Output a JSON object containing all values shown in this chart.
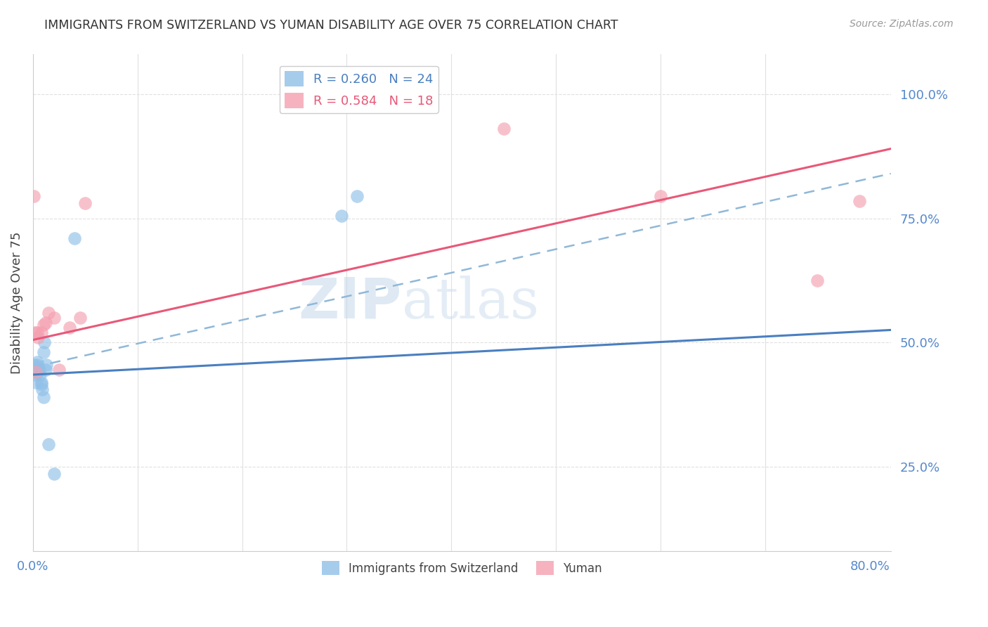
{
  "title": "IMMIGRANTS FROM SWITZERLAND VS YUMAN DISABILITY AGE OVER 75 CORRELATION CHART",
  "source": "Source: ZipAtlas.com",
  "ylabel": "Disability Age Over 75",
  "xlim": [
    0.0,
    0.82
  ],
  "ylim": [
    0.08,
    1.08
  ],
  "watermark_zip": "ZIP",
  "watermark_atlas": "atlas",
  "swiss_scatter_x": [
    0.001,
    0.002,
    0.002,
    0.003,
    0.003,
    0.004,
    0.004,
    0.005,
    0.005,
    0.006,
    0.007,
    0.008,
    0.008,
    0.009,
    0.01,
    0.01,
    0.011,
    0.012,
    0.013,
    0.015,
    0.02,
    0.04,
    0.295,
    0.31
  ],
  "swiss_scatter_y": [
    0.455,
    0.435,
    0.445,
    0.44,
    0.42,
    0.46,
    0.455,
    0.45,
    0.44,
    0.445,
    0.435,
    0.42,
    0.415,
    0.405,
    0.39,
    0.48,
    0.5,
    0.445,
    0.455,
    0.295,
    0.235,
    0.71,
    0.755,
    0.795
  ],
  "yuman_scatter_x": [
    0.001,
    0.002,
    0.003,
    0.004,
    0.005,
    0.008,
    0.01,
    0.012,
    0.015,
    0.02,
    0.025,
    0.035,
    0.045,
    0.05,
    0.45,
    0.6,
    0.75,
    0.79
  ],
  "yuman_scatter_y": [
    0.795,
    0.52,
    0.44,
    0.52,
    0.51,
    0.52,
    0.535,
    0.54,
    0.56,
    0.55,
    0.445,
    0.53,
    0.55,
    0.78,
    0.93,
    0.795,
    0.625,
    0.785
  ],
  "blue_color": "#90c0e8",
  "pink_color": "#f4a0b0",
  "blue_line_color": "#4a7fc0",
  "pink_line_color": "#e85878",
  "dashed_line_color": "#90b8d8",
  "grid_color": "#e0e0e0",
  "right_axis_color": "#5588cc",
  "title_color": "#333333",
  "source_color": "#999999",
  "blue_line_x0": 0.0,
  "blue_line_y0": 0.435,
  "blue_line_x1": 0.82,
  "blue_line_y1": 0.525,
  "pink_line_x0": 0.0,
  "pink_line_y0": 0.505,
  "pink_line_x1": 0.82,
  "pink_line_y1": 0.89,
  "dashed_line_x0": 0.0,
  "dashed_line_y0": 0.45,
  "dashed_line_x1": 0.82,
  "dashed_line_y1": 0.84
}
